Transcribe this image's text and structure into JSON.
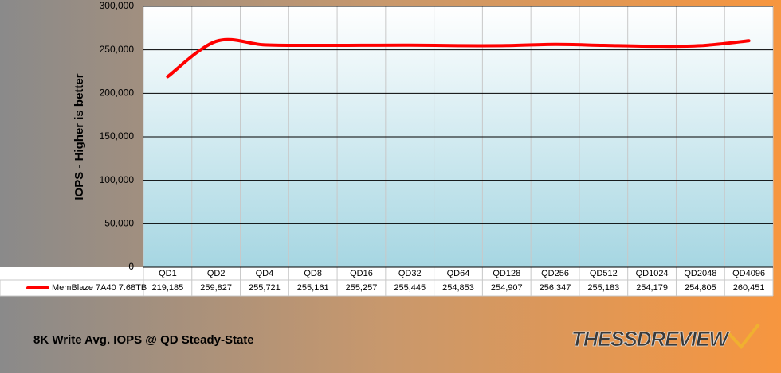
{
  "chart_data": {
    "type": "line",
    "title": "8K Write Avg. IOPS @ QD Steady-State",
    "y_label": "IOPS - Higher is better",
    "logo": "THESSDREVIEW",
    "categories": [
      "QD1",
      "QD2",
      "QD4",
      "QD8",
      "QD16",
      "QD32",
      "QD64",
      "QD128",
      "QD256",
      "QD512",
      "QD1024",
      "QD2048",
      "QD4096"
    ],
    "series": [
      {
        "name": "MemBlaze 7A40 7.68TB",
        "color": "#ff0000",
        "values": [
          219185,
          259827,
          255721,
          255161,
          255257,
          255445,
          254853,
          254907,
          256347,
          255183,
          254179,
          254805,
          260451
        ],
        "value_labels": [
          "219,185",
          "259,827",
          "255,721",
          "255,161",
          "255,257",
          "255,445",
          "254,853",
          "254,907",
          "256,347",
          "255,183",
          "254,179",
          "254,805",
          "260,451"
        ]
      }
    ],
    "ylim": [
      0,
      300000
    ],
    "yticks": [
      0,
      {
        "value": 50000,
        "label": "50,000"
      },
      {
        "value": 100000,
        "label": "100,000"
      },
      {
        "value": 150000,
        "label": "150,000"
      },
      {
        "value": 200000,
        "label": "200,000"
      },
      {
        "value": 250000,
        "label": "250,000"
      },
      {
        "value": 300000,
        "label": "300,000"
      }
    ],
    "grid": true
  }
}
